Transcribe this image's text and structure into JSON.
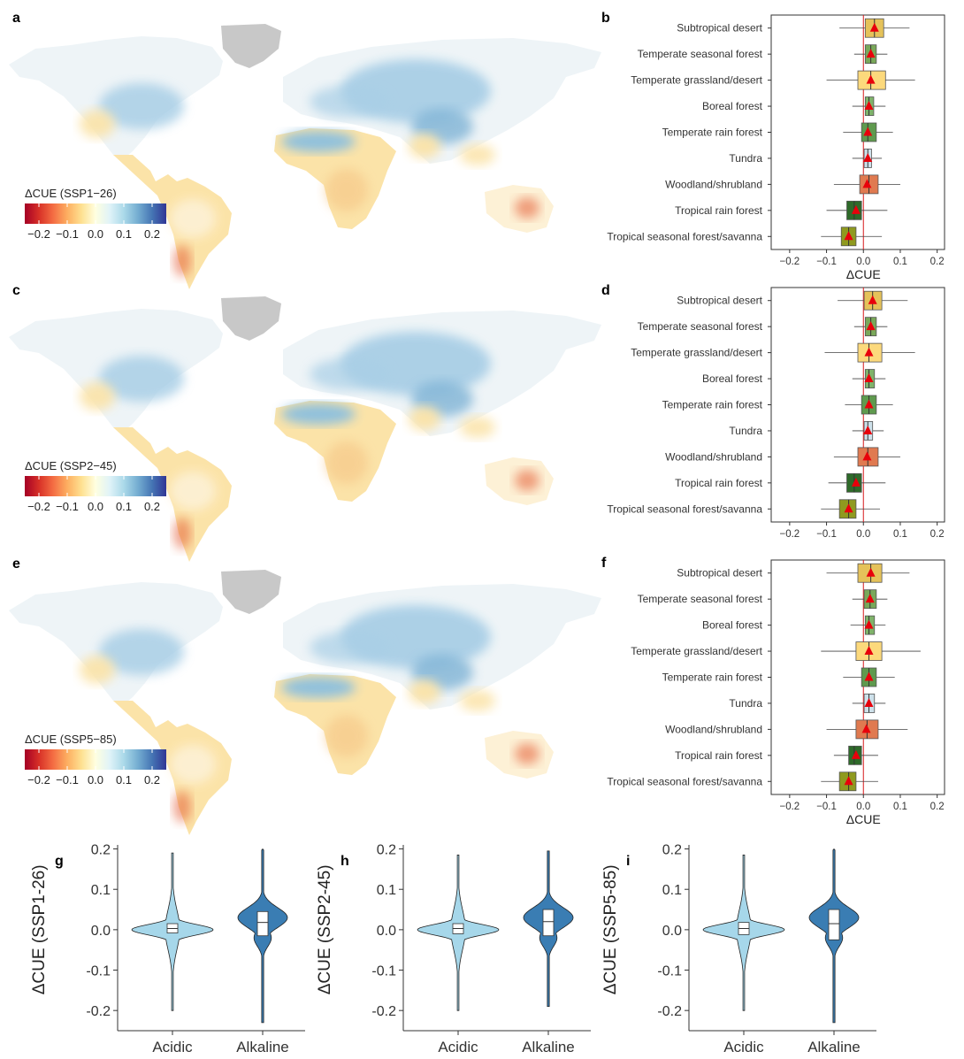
{
  "colors": {
    "land_grey": "#c8c8c8",
    "zero_line": "#d7191c",
    "mean_marker": "#e8000b",
    "acidic": "#a6d7ea",
    "alkaline": "#3a7db3",
    "colorbar": [
      "#a50026",
      "#d73027",
      "#f46d43",
      "#fdae61",
      "#fee090",
      "#ffffe0",
      "#e0f3f8",
      "#abd9e9",
      "#74add1",
      "#4575b4",
      "#313695"
    ]
  },
  "maps": [
    {
      "panel": "a",
      "legend_title": "ΔCUE (SSP1−26)",
      "ticks": [
        "−0.2",
        "−0.1",
        "0.0",
        "0.1",
        "0.2"
      ]
    },
    {
      "panel": "c",
      "legend_title": "ΔCUE (SSP2−45)",
      "ticks": [
        "−0.2",
        "−0.1",
        "0.0",
        "0.1",
        "0.2"
      ]
    },
    {
      "panel": "e",
      "legend_title": "ΔCUE (SSP5−85)",
      "ticks": [
        "−0.2",
        "−0.1",
        "0.0",
        "0.1",
        "0.2"
      ]
    }
  ],
  "chart_data": [
    {
      "type": "boxplot",
      "panel": "b",
      "xlabel": "ΔCUE",
      "xlim": [
        -0.25,
        0.22
      ],
      "xticks": [
        "−0.2",
        "−0.1",
        "0.0",
        "0.1",
        "0.2"
      ],
      "xtick_values": [
        -0.2,
        -0.1,
        0.0,
        0.1,
        0.2
      ],
      "categories": [
        {
          "name": "Subtropical desert",
          "color": "#e5c25a",
          "whisker": [
            -0.065,
            0.125
          ],
          "box": [
            0.005,
            0.055
          ],
          "median": 0.03,
          "mean": 0.03
        },
        {
          "name": "Temperate seasonal forest",
          "color": "#79a85a",
          "whisker": [
            -0.025,
            0.065
          ],
          "box": [
            0.005,
            0.035
          ],
          "median": 0.02,
          "mean": 0.02
        },
        {
          "name": "Temperate grassland/desert",
          "color": "#fcd97c",
          "whisker": [
            -0.1,
            0.14
          ],
          "box": [
            -0.015,
            0.06
          ],
          "median": 0.02,
          "mean": 0.02
        },
        {
          "name": "Boreal forest",
          "color": "#7fb36a",
          "whisker": [
            -0.03,
            0.06
          ],
          "box": [
            0.005,
            0.028
          ],
          "median": 0.015,
          "mean": 0.015
        },
        {
          "name": "Temperate rain forest",
          "color": "#5f9a4e",
          "whisker": [
            -0.055,
            0.08
          ],
          "box": [
            -0.005,
            0.035
          ],
          "median": 0.012,
          "mean": 0.012
        },
        {
          "name": "Tundra",
          "color": "#cde0ea",
          "whisker": [
            -0.03,
            0.05
          ],
          "box": [
            0.002,
            0.022
          ],
          "median": 0.012,
          "mean": 0.012
        },
        {
          "name": "Woodland/shrubland",
          "color": "#e07a50",
          "whisker": [
            -0.08,
            0.1
          ],
          "box": [
            -0.01,
            0.04
          ],
          "median": 0.015,
          "mean": 0.01
        },
        {
          "name": "Tropical rain forest",
          "color": "#2e6a2a",
          "whisker": [
            -0.1,
            0.065
          ],
          "box": [
            -0.045,
            -0.005
          ],
          "median": -0.025,
          "mean": -0.02
        },
        {
          "name": "Tropical seasonal forest/savanna",
          "color": "#8f9a1f",
          "whisker": [
            -0.115,
            0.05
          ],
          "box": [
            -0.06,
            -0.02
          ],
          "median": -0.04,
          "mean": -0.04
        }
      ]
    },
    {
      "type": "boxplot",
      "panel": "d",
      "xlabel": "",
      "xlim": [
        -0.25,
        0.22
      ],
      "xticks": [
        "−0.2",
        "−0.1",
        "0.0",
        "0.1",
        "0.2"
      ],
      "xtick_values": [
        -0.2,
        -0.1,
        0.0,
        0.1,
        0.2
      ],
      "categories": [
        {
          "name": "Subtropical desert",
          "color": "#e5c25a",
          "whisker": [
            -0.07,
            0.12
          ],
          "box": [
            0.002,
            0.05
          ],
          "median": 0.025,
          "mean": 0.025
        },
        {
          "name": "Temperate seasonal forest",
          "color": "#79a85a",
          "whisker": [
            -0.025,
            0.065
          ],
          "box": [
            0.005,
            0.035
          ],
          "median": 0.02,
          "mean": 0.02
        },
        {
          "name": "Temperate grassland/desert",
          "color": "#fcd97c",
          "whisker": [
            -0.105,
            0.14
          ],
          "box": [
            -0.015,
            0.05
          ],
          "median": 0.015,
          "mean": 0.015
        },
        {
          "name": "Boreal forest",
          "color": "#7fb36a",
          "whisker": [
            -0.03,
            0.06
          ],
          "box": [
            0.005,
            0.03
          ],
          "median": 0.015,
          "mean": 0.015
        },
        {
          "name": "Temperate rain forest",
          "color": "#5f9a4e",
          "whisker": [
            -0.05,
            0.08
          ],
          "box": [
            -0.005,
            0.035
          ],
          "median": 0.015,
          "mean": 0.015
        },
        {
          "name": "Tundra",
          "color": "#cde0ea",
          "whisker": [
            -0.03,
            0.055
          ],
          "box": [
            0.002,
            0.025
          ],
          "median": 0.012,
          "mean": 0.012
        },
        {
          "name": "Woodland/shrubland",
          "color": "#e07a50",
          "whisker": [
            -0.08,
            0.1
          ],
          "box": [
            -0.015,
            0.04
          ],
          "median": 0.012,
          "mean": 0.01
        },
        {
          "name": "Tropical rain forest",
          "color": "#2e6a2a",
          "whisker": [
            -0.095,
            0.06
          ],
          "box": [
            -0.045,
            -0.005
          ],
          "median": -0.025,
          "mean": -0.02
        },
        {
          "name": "Tropical seasonal forest/savanna",
          "color": "#8f9a1f",
          "whisker": [
            -0.115,
            0.045
          ],
          "box": [
            -0.065,
            -0.02
          ],
          "median": -0.04,
          "mean": -0.04
        }
      ]
    },
    {
      "type": "boxplot",
      "panel": "f",
      "xlabel": "ΔCUE",
      "xlim": [
        -0.25,
        0.22
      ],
      "xticks": [
        "−0.2",
        "−0.1",
        "0.0",
        "0.1",
        "0.2"
      ],
      "xtick_values": [
        -0.2,
        -0.1,
        0.0,
        0.1,
        0.2
      ],
      "categories": [
        {
          "name": "Subtropical desert",
          "color": "#e5c25a",
          "whisker": [
            -0.1,
            0.125
          ],
          "box": [
            -0.015,
            0.05
          ],
          "median": 0.02,
          "mean": 0.02
        },
        {
          "name": "Temperate seasonal forest",
          "color": "#79a85a",
          "whisker": [
            -0.03,
            0.065
          ],
          "box": [
            0.002,
            0.035
          ],
          "median": 0.018,
          "mean": 0.018
        },
        {
          "name": "Boreal forest",
          "color": "#7fb36a",
          "whisker": [
            -0.035,
            0.06
          ],
          "box": [
            0.005,
            0.03
          ],
          "median": 0.015,
          "mean": 0.015
        },
        {
          "name": "Temperate grassland/desert",
          "color": "#fcd97c",
          "whisker": [
            -0.115,
            0.155
          ],
          "box": [
            -0.02,
            0.05
          ],
          "median": 0.015,
          "mean": 0.015
        },
        {
          "name": "Temperate rain forest",
          "color": "#5f9a4e",
          "whisker": [
            -0.055,
            0.085
          ],
          "box": [
            -0.005,
            0.035
          ],
          "median": 0.015,
          "mean": 0.015
        },
        {
          "name": "Tundra",
          "color": "#cde0ea",
          "whisker": [
            -0.03,
            0.06
          ],
          "box": [
            0.002,
            0.03
          ],
          "median": 0.015,
          "mean": 0.015
        },
        {
          "name": "Woodland/shrubland",
          "color": "#e07a50",
          "whisker": [
            -0.1,
            0.12
          ],
          "box": [
            -0.02,
            0.04
          ],
          "median": 0.01,
          "mean": 0.008
        },
        {
          "name": "Tropical rain forest",
          "color": "#2e6a2a",
          "whisker": [
            -0.08,
            0.04
          ],
          "box": [
            -0.04,
            -0.005
          ],
          "median": -0.025,
          "mean": -0.02
        },
        {
          "name": "Tropical seasonal forest/savanna",
          "color": "#8f9a1f",
          "whisker": [
            -0.115,
            0.04
          ],
          "box": [
            -0.065,
            -0.02
          ],
          "median": -0.04,
          "mean": -0.04
        }
      ]
    },
    {
      "type": "violin",
      "panel": "g",
      "ylabel": "ΔCUE (SSP1-26)",
      "ylim": [
        -0.25,
        0.21
      ],
      "yticks": [
        "0.2",
        "0.1",
        "0.0",
        "-0.1",
        "-0.2"
      ],
      "ytick_values": [
        0.2,
        0.1,
        0.0,
        -0.1,
        -0.2
      ],
      "categories": [
        "Acidic",
        "Alkaline"
      ],
      "series": [
        {
          "category": "Acidic",
          "range": [
            -0.2,
            0.19
          ],
          "q1": -0.008,
          "median": 0.003,
          "q3": 0.015
        },
        {
          "category": "Alkaline",
          "range": [
            -0.23,
            0.2
          ],
          "q1": -0.015,
          "median": 0.018,
          "q3": 0.045
        }
      ]
    },
    {
      "type": "violin",
      "panel": "h",
      "ylabel": "ΔCUE (SSP2-45)",
      "ylim": [
        -0.25,
        0.21
      ],
      "yticks": [
        "0.2",
        "0.1",
        "0.0",
        "-0.1",
        "-0.2"
      ],
      "ytick_values": [
        0.2,
        0.1,
        0.0,
        -0.1,
        -0.2
      ],
      "categories": [
        "Acidic",
        "Alkaline"
      ],
      "series": [
        {
          "category": "Acidic",
          "range": [
            -0.2,
            0.185
          ],
          "q1": -0.01,
          "median": 0.003,
          "q3": 0.015
        },
        {
          "category": "Alkaline",
          "range": [
            -0.19,
            0.195
          ],
          "q1": -0.015,
          "median": 0.02,
          "q3": 0.05
        }
      ]
    },
    {
      "type": "violin",
      "panel": "i",
      "ylabel": "ΔCUE (SSP5-85)",
      "ylim": [
        -0.25,
        0.21
      ],
      "yticks": [
        "0.2",
        "0.1",
        "0.0",
        "-0.1",
        "-0.2"
      ],
      "ytick_values": [
        0.2,
        0.1,
        0.0,
        -0.1,
        -0.2
      ],
      "categories": [
        "Acidic",
        "Alkaline"
      ],
      "series": [
        {
          "category": "Acidic",
          "range": [
            -0.2,
            0.185
          ],
          "q1": -0.012,
          "median": 0.003,
          "q3": 0.018
        },
        {
          "category": "Alkaline",
          "range": [
            -0.23,
            0.2
          ],
          "q1": -0.025,
          "median": 0.015,
          "q3": 0.05
        }
      ]
    }
  ]
}
